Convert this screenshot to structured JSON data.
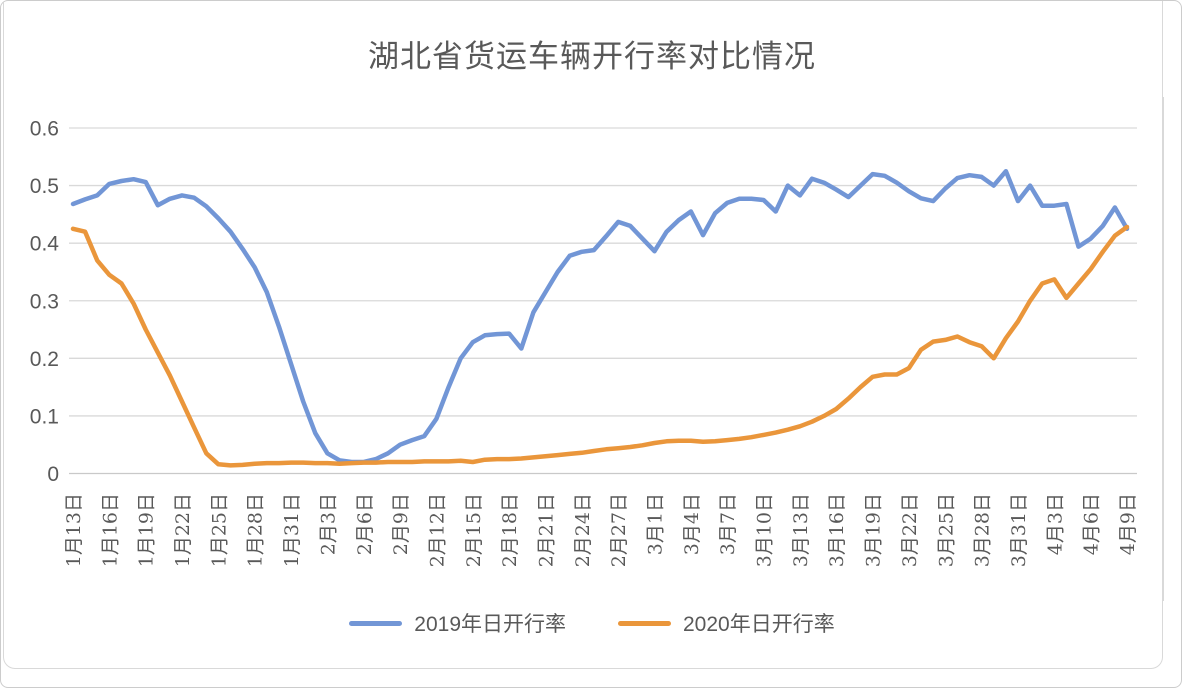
{
  "title": "湖北省货运车辆开行率对比情况",
  "colors": {
    "series_2019_blue": "#7296D6",
    "series_2020_orange": "#EA963B",
    "gridline": "#D9D9D9",
    "zero_axis_line": "#C9C9C9",
    "axis_text": "#595959",
    "frame_border": "#D9D9D9"
  },
  "chart_data": {
    "type": "line",
    "title": "湖北省货运车辆开行率对比情况",
    "grid": "horizontal",
    "legend_position": "bottom",
    "x_axis": {
      "total_points": 88,
      "points_per_tick": 3,
      "tick_labels": [
        "1月13日",
        "1月16日",
        "1月19日",
        "1月22日",
        "1月25日",
        "1月28日",
        "1月31日",
        "2月3日",
        "2月6日",
        "2月9日",
        "2月12日",
        "2月15日",
        "2月18日",
        "2月21日",
        "2月24日",
        "2月27日",
        "3月1日",
        "3月4日",
        "3月7日",
        "3月10日",
        "3月13日",
        "3月16日",
        "3月19日",
        "3月22日",
        "3月25日",
        "3月28日",
        "3月31日",
        "4月3日",
        "4月6日",
        "4月9日"
      ]
    },
    "y_axis": {
      "min": 0,
      "max": 0.6,
      "tick_step": 0.1,
      "tick_labels": [
        "0",
        "0.1",
        "0.2",
        "0.3",
        "0.4",
        "0.5",
        "0.6"
      ]
    },
    "series": [
      {
        "name": "2019年日开行率",
        "color": "#7296D6",
        "values": [
          0.468,
          0.476,
          0.483,
          0.503,
          0.508,
          0.511,
          0.506,
          0.466,
          0.477,
          0.483,
          0.479,
          0.464,
          0.443,
          0.42,
          0.39,
          0.358,
          0.315,
          0.255,
          0.19,
          0.125,
          0.07,
          0.035,
          0.023,
          0.02,
          0.02,
          0.025,
          0.035,
          0.05,
          0.058,
          0.065,
          0.095,
          0.15,
          0.2,
          0.228,
          0.24,
          0.242,
          0.243,
          0.217,
          0.28,
          0.315,
          0.35,
          0.378,
          0.385,
          0.388,
          0.412,
          0.437,
          0.43,
          0.408,
          0.386,
          0.42,
          0.44,
          0.455,
          0.414,
          0.452,
          0.47,
          0.477,
          0.477,
          0.475,
          0.455,
          0.5,
          0.483,
          0.512,
          0.505,
          0.493,
          0.48,
          0.5,
          0.52,
          0.517,
          0.505,
          0.49,
          0.478,
          0.473,
          0.495,
          0.513,
          0.518,
          0.515,
          0.5,
          0.525,
          0.473,
          0.5,
          0.465,
          0.465,
          0.468,
          0.394,
          0.408,
          0.43,
          0.462,
          0.425
        ]
      },
      {
        "name": "2020年日开行率",
        "color": "#EA963B",
        "values": [
          0.425,
          0.42,
          0.37,
          0.345,
          0.33,
          0.295,
          0.25,
          0.21,
          0.17,
          0.125,
          0.08,
          0.035,
          0.016,
          0.014,
          0.015,
          0.017,
          0.018,
          0.018,
          0.019,
          0.019,
          0.018,
          0.018,
          0.017,
          0.018,
          0.019,
          0.019,
          0.02,
          0.02,
          0.02,
          0.021,
          0.021,
          0.021,
          0.022,
          0.02,
          0.024,
          0.025,
          0.025,
          0.026,
          0.028,
          0.03,
          0.032,
          0.034,
          0.036,
          0.039,
          0.042,
          0.044,
          0.046,
          0.049,
          0.053,
          0.056,
          0.057,
          0.057,
          0.055,
          0.056,
          0.058,
          0.06,
          0.063,
          0.067,
          0.071,
          0.076,
          0.082,
          0.09,
          0.1,
          0.112,
          0.13,
          0.15,
          0.168,
          0.172,
          0.172,
          0.183,
          0.215,
          0.229,
          0.232,
          0.238,
          0.228,
          0.221,
          0.2,
          0.235,
          0.264,
          0.3,
          0.33,
          0.337,
          0.305,
          0.33,
          0.355,
          0.385,
          0.413,
          0.428
        ]
      }
    ]
  }
}
